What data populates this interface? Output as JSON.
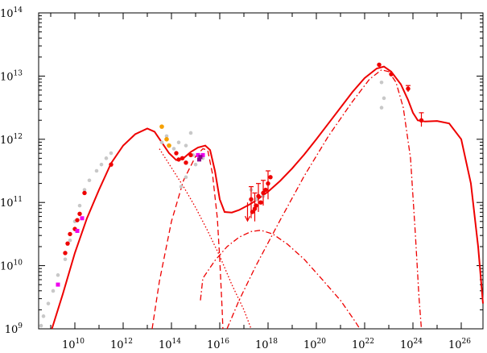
{
  "chart_data": {
    "type": "scatter",
    "title": "",
    "xlabel": "",
    "ylabel": "",
    "x_scale": "log",
    "y_scale": "log",
    "xlim_log10": [
      8.5,
      26.9
    ],
    "ylim_log10": [
      9,
      14
    ],
    "grid": false,
    "x_tick_labels": [
      {
        "base": "10",
        "exp": "10",
        "value_log10": 10
      },
      {
        "base": "10",
        "exp": "12",
        "value_log10": 12
      },
      {
        "base": "10",
        "exp": "14",
        "value_log10": 14
      },
      {
        "base": "10",
        "exp": "16",
        "value_log10": 16
      },
      {
        "base": "10",
        "exp": "18",
        "value_log10": 18
      },
      {
        "base": "10",
        "exp": "20",
        "value_log10": 20
      },
      {
        "base": "10",
        "exp": "22",
        "value_log10": 22
      },
      {
        "base": "10",
        "exp": "24",
        "value_log10": 24
      },
      {
        "base": "10",
        "exp": "26",
        "value_log10": 26
      }
    ],
    "y_tick_labels": [
      {
        "base": "10",
        "exp": "9",
        "value_log10": 9
      },
      {
        "base": "10",
        "exp": "10",
        "value_log10": 10
      },
      {
        "base": "10",
        "exp": "11",
        "value_log10": 11
      },
      {
        "base": "10",
        "exp": "12",
        "value_log10": 12
      },
      {
        "base": "10",
        "exp": "13",
        "value_log10": 13
      },
      {
        "base": "10",
        "exp": "14",
        "value_log10": 14
      }
    ],
    "colors": {
      "red": "#ee0000",
      "gray": "#c8c8c8",
      "orange": "#f5a000",
      "magenta": "#ee00ee",
      "purple": "#8b008b"
    },
    "lines": [
      {
        "style": "solid",
        "color": "red",
        "points_log10": [
          [
            9.05,
            9.0
          ],
          [
            9.5,
            9.55
          ],
          [
            10.0,
            10.2
          ],
          [
            10.5,
            10.75
          ],
          [
            11.0,
            11.2
          ],
          [
            11.5,
            11.62
          ],
          [
            12.0,
            11.9
          ],
          [
            12.5,
            12.08
          ],
          [
            13.0,
            12.17
          ],
          [
            13.3,
            12.12
          ],
          [
            13.6,
            11.95
          ],
          [
            13.9,
            11.78
          ],
          [
            14.2,
            11.67
          ],
          [
            14.5,
            11.7
          ],
          [
            14.8,
            11.8
          ],
          [
            15.1,
            11.87
          ],
          [
            15.4,
            11.9
          ],
          [
            15.6,
            11.83
          ],
          [
            15.8,
            11.5
          ],
          [
            16.0,
            11.05
          ],
          [
            16.2,
            10.85
          ],
          [
            16.5,
            10.84
          ],
          [
            16.8,
            10.88
          ],
          [
            17.2,
            10.96
          ],
          [
            17.5,
            11.03
          ],
          [
            18.0,
            11.17
          ],
          [
            18.5,
            11.34
          ],
          [
            19.0,
            11.54
          ],
          [
            19.5,
            11.76
          ],
          [
            20.0,
            12.0
          ],
          [
            20.5,
            12.25
          ],
          [
            21.0,
            12.5
          ],
          [
            21.5,
            12.75
          ],
          [
            22.0,
            12.97
          ],
          [
            22.5,
            13.12
          ],
          [
            22.8,
            13.15
          ],
          [
            23.1,
            13.07
          ],
          [
            23.5,
            12.87
          ],
          [
            23.8,
            12.62
          ],
          [
            24.0,
            12.42
          ],
          [
            24.2,
            12.3
          ],
          [
            24.5,
            12.28
          ],
          [
            25.0,
            12.29
          ],
          [
            25.5,
            12.25
          ],
          [
            26.0,
            12.0
          ],
          [
            26.4,
            11.3
          ],
          [
            26.7,
            10.3
          ],
          [
            26.9,
            9.4
          ]
        ]
      },
      {
        "style": "dashed",
        "color": "red",
        "points_log10": [
          [
            13.2,
            9.0
          ],
          [
            13.5,
            9.75
          ],
          [
            14.0,
            10.7
          ],
          [
            14.5,
            11.35
          ],
          [
            15.0,
            11.73
          ],
          [
            15.3,
            11.85
          ],
          [
            15.5,
            11.83
          ],
          [
            15.7,
            11.45
          ],
          [
            15.9,
            10.75
          ],
          [
            16.0,
            10.1
          ],
          [
            16.1,
            9.3
          ],
          [
            16.13,
            9.0
          ]
        ]
      },
      {
        "style": "dotted",
        "color": "red",
        "points_log10": [
          [
            13.5,
            11.85
          ],
          [
            14.0,
            11.55
          ],
          [
            14.5,
            11.25
          ],
          [
            15.0,
            10.92
          ],
          [
            15.5,
            10.55
          ],
          [
            16.0,
            10.15
          ],
          [
            16.5,
            9.7
          ],
          [
            17.0,
            9.3
          ],
          [
            17.3,
            9.0
          ]
        ]
      },
      {
        "style": "dashdot",
        "color": "red",
        "points_log10": [
          [
            15.2,
            9.45
          ],
          [
            15.3,
            9.8
          ],
          [
            15.8,
            10.08
          ],
          [
            16.3,
            10.3
          ],
          [
            16.8,
            10.45
          ],
          [
            17.3,
            10.54
          ],
          [
            17.7,
            10.56
          ],
          [
            18.2,
            10.5
          ],
          [
            18.8,
            10.34
          ],
          [
            19.5,
            10.1
          ],
          [
            20.2,
            9.8
          ],
          [
            21.0,
            9.45
          ],
          [
            21.6,
            9.12
          ],
          [
            21.8,
            9.0
          ]
        ]
      },
      {
        "style": "dashdot",
        "color": "red",
        "points_log10": [
          [
            16.3,
            9.0
          ],
          [
            16.8,
            9.45
          ],
          [
            17.5,
            10.0
          ],
          [
            18.5,
            10.72
          ],
          [
            19.5,
            11.42
          ],
          [
            20.5,
            12.05
          ],
          [
            21.5,
            12.6
          ],
          [
            22.2,
            12.95
          ],
          [
            22.7,
            13.1
          ],
          [
            23.0,
            13.07
          ],
          [
            23.3,
            12.9
          ],
          [
            23.6,
            12.5
          ],
          [
            23.9,
            11.7
          ],
          [
            24.1,
            10.5
          ],
          [
            24.25,
            9.5
          ],
          [
            24.35,
            9.0
          ]
        ]
      }
    ],
    "gray_points_log10": [
      [
        8.6,
        9.05
      ],
      [
        8.7,
        9.2
      ],
      [
        8.9,
        9.4
      ],
      [
        9.1,
        9.6
      ],
      [
        9.3,
        9.85
      ],
      [
        9.6,
        10.1
      ],
      [
        9.8,
        10.4
      ],
      [
        10.0,
        10.7
      ],
      [
        10.2,
        10.95
      ],
      [
        10.4,
        11.2
      ],
      [
        10.6,
        11.35
      ],
      [
        10.9,
        11.5
      ],
      [
        11.1,
        11.6
      ],
      [
        11.3,
        11.7
      ],
      [
        11.5,
        11.78
      ],
      [
        13.6,
        11.95
      ],
      [
        13.8,
        12.05
      ],
      [
        14.1,
        11.85
      ],
      [
        14.3,
        11.95
      ],
      [
        14.6,
        11.9
      ],
      [
        14.8,
        12.1
      ],
      [
        14.9,
        11.75
      ],
      [
        14.4,
        11.25
      ],
      [
        14.6,
        11.4
      ],
      [
        15.0,
        11.6
      ],
      [
        15.3,
        11.7
      ],
      [
        17.3,
        11.2
      ],
      [
        17.5,
        11.05
      ],
      [
        17.8,
        11.1
      ],
      [
        22.7,
        12.9
      ],
      [
        22.8,
        12.65
      ],
      [
        22.7,
        12.5
      ]
    ],
    "red_points_log10": [
      [
        9.6,
        10.2
      ],
      [
        9.7,
        10.35
      ],
      [
        9.8,
        10.5
      ],
      [
        10.0,
        10.58
      ],
      [
        10.1,
        10.72
      ],
      [
        10.2,
        10.82
      ],
      [
        10.4,
        11.15
      ],
      [
        11.5,
        11.6
      ],
      [
        14.2,
        11.78
      ],
      [
        14.3,
        11.68
      ],
      [
        14.45,
        11.7
      ],
      [
        14.6,
        11.63
      ],
      [
        14.8,
        11.75
      ],
      [
        17.3,
        11.05
      ],
      [
        17.35,
        10.85
      ],
      [
        17.45,
        10.9
      ],
      [
        17.5,
        10.95
      ],
      [
        17.6,
        11.1
      ],
      [
        17.7,
        11.0
      ],
      [
        17.8,
        11.15
      ],
      [
        17.9,
        11.2
      ],
      [
        18.0,
        11.3
      ],
      [
        18.1,
        11.4
      ],
      [
        22.6,
        13.18
      ],
      [
        23.1,
        13.03
      ],
      [
        23.8,
        12.8
      ],
      [
        24.35,
        12.3
      ]
    ],
    "red_error_bars_log10": [
      [
        17.3,
        10.75,
        11.25
      ],
      [
        17.45,
        10.7,
        11.15
      ],
      [
        17.6,
        10.85,
        11.3
      ],
      [
        17.8,
        10.95,
        11.35
      ],
      [
        18.0,
        11.05,
        11.5
      ],
      [
        24.35,
        12.2,
        12.42
      ],
      [
        23.8,
        12.75,
        12.85
      ]
    ],
    "orange_points_log10": [
      [
        13.6,
        12.2
      ],
      [
        13.8,
        12.0
      ],
      [
        13.9,
        11.9
      ]
    ],
    "magenta_points_log10": [
      [
        9.3,
        9.7
      ],
      [
        10.1,
        10.55
      ],
      [
        10.3,
        10.75
      ],
      [
        15.1,
        11.75
      ],
      [
        15.3,
        11.75
      ]
    ],
    "purple_points_log10": [
      [
        15.2,
        11.72
      ],
      [
        15.15,
        11.68
      ]
    ],
    "upper_limit_arrows_log10": [
      [
        17.15,
        11.0
      ]
    ]
  }
}
